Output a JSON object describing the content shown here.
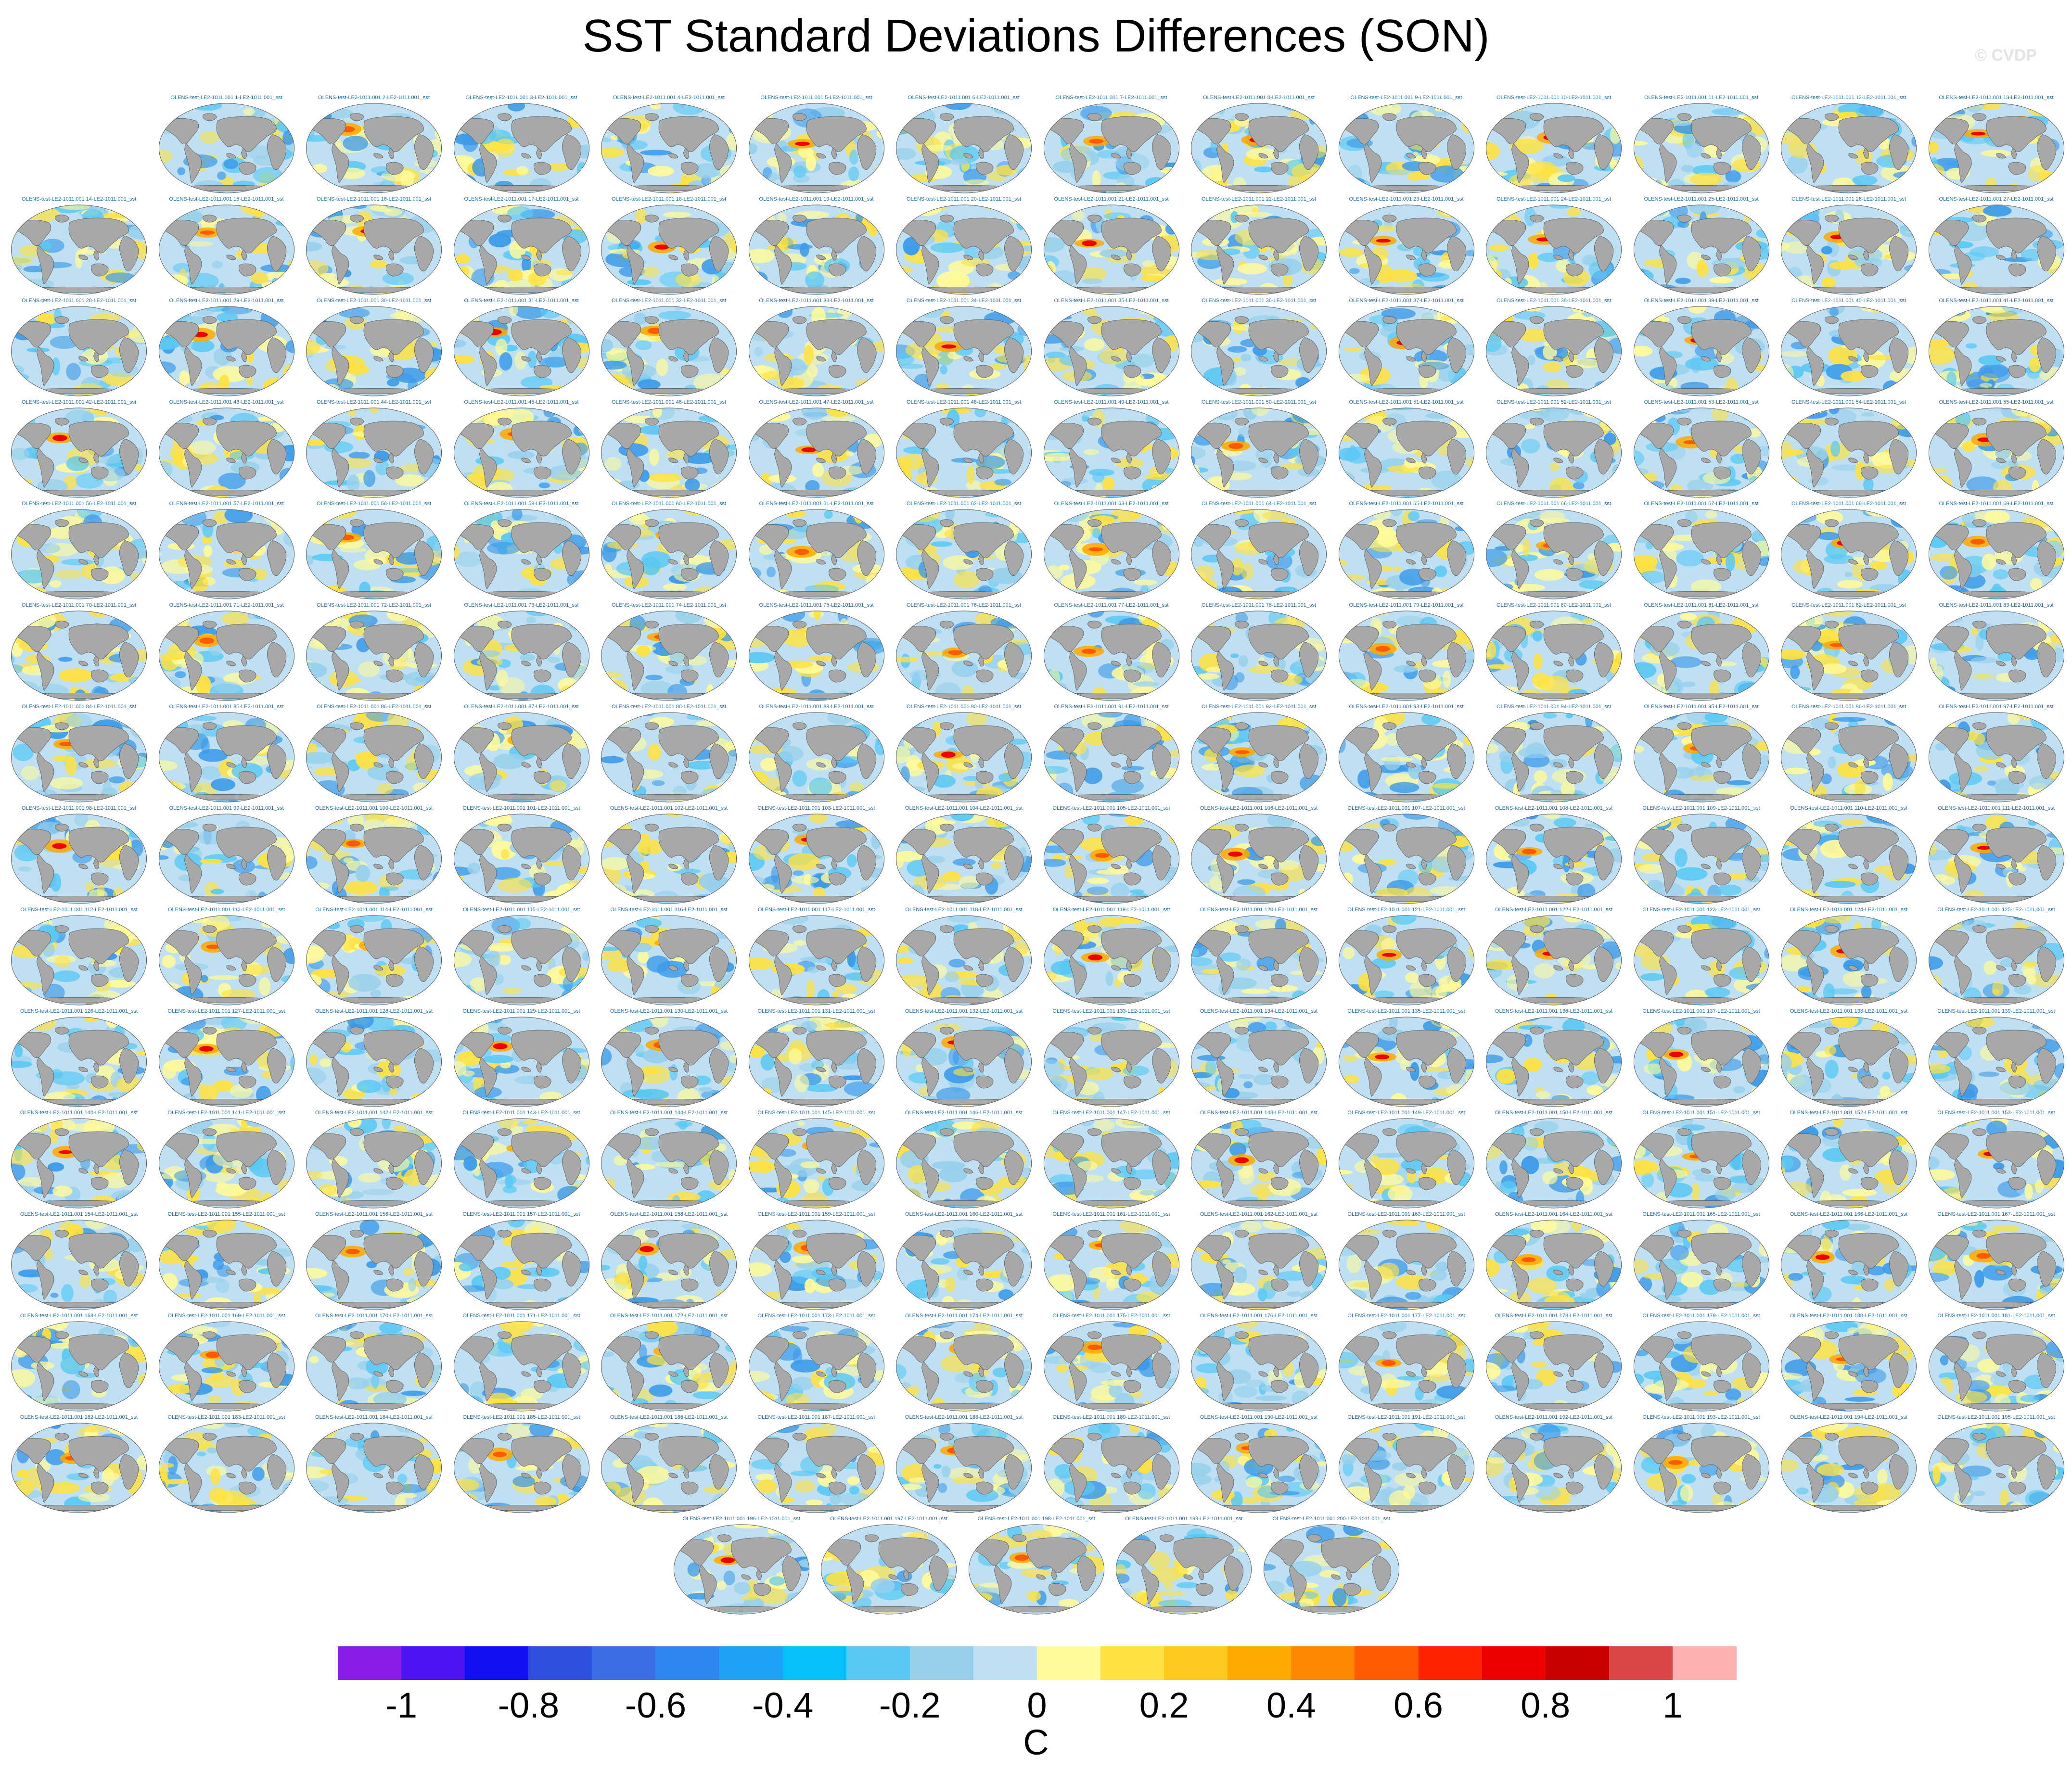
{
  "title": "SST Standard Deviations Differences (SON)",
  "watermark": "© CVDP",
  "panel_label_template": "OLENS-test-LE2-1011.001 {n}-LE2-1011.001_sst",
  "panel_count": 200,
  "colorbar": {
    "colors": [
      "#8b1ee6",
      "#4b14f0",
      "#1010f0",
      "#3050e0",
      "#3c6ee6",
      "#2e86f0",
      "#1ea2f6",
      "#06c0fa",
      "#5ac8f4",
      "#98d0ec",
      "#bee0f2",
      "#fffa9a",
      "#ffe240",
      "#ffc81e",
      "#ffa800",
      "#ff8800",
      "#ff5a00",
      "#ff2400",
      "#ee0000",
      "#c80000",
      "#dc4646",
      "#ffb0b0"
    ],
    "tick_labels": [
      "-1",
      "-0.8",
      "-0.6",
      "-0.4",
      "-0.2",
      "0",
      "0.2",
      "0.4",
      "0.6",
      "0.8",
      "1"
    ],
    "units": "C"
  },
  "map_colors": {
    "ocean_base": "#bee0f2",
    "land": "#a8a8a8",
    "coast": "#555555",
    "negative": [
      "#98d0ec",
      "#5ac8f4",
      "#3c9ae8"
    ],
    "positive": [
      "#fffa9a",
      "#ffe240",
      "#ffa800",
      "#ff5a00",
      "#ee0000"
    ]
  }
}
